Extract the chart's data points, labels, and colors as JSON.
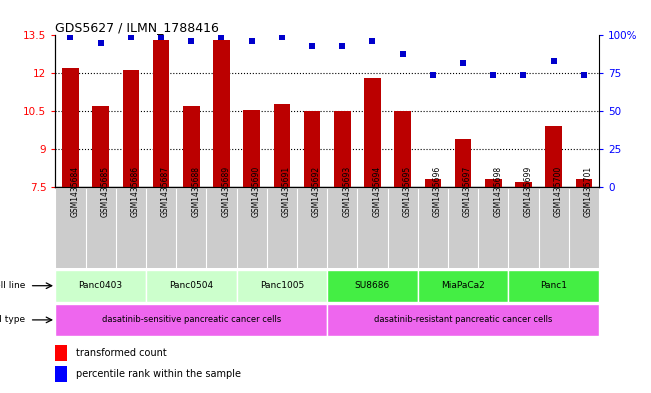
{
  "title": "GDS5627 / ILMN_1788416",
  "samples": [
    "GSM1435684",
    "GSM1435685",
    "GSM1435686",
    "GSM1435687",
    "GSM1435688",
    "GSM1435689",
    "GSM1435690",
    "GSM1435691",
    "GSM1435692",
    "GSM1435693",
    "GSM1435694",
    "GSM1435695",
    "GSM1435696",
    "GSM1435697",
    "GSM1435698",
    "GSM1435699",
    "GSM1435700",
    "GSM1435701"
  ],
  "transformed_count": [
    12.2,
    10.7,
    12.15,
    13.3,
    10.7,
    13.3,
    10.55,
    10.8,
    10.5,
    10.5,
    11.8,
    10.5,
    7.8,
    9.4,
    7.8,
    7.7,
    9.9,
    7.8
  ],
  "percentile_rank": [
    99,
    95,
    99,
    99,
    96,
    99,
    96,
    99,
    93,
    93,
    96,
    88,
    74,
    82,
    74,
    74,
    83,
    74
  ],
  "cell_line_groups": [
    {
      "label": "Panc0403",
      "start": 0,
      "end": 3,
      "color": "#ccffcc"
    },
    {
      "label": "Panc0504",
      "start": 3,
      "end": 6,
      "color": "#ccffcc"
    },
    {
      "label": "Panc1005",
      "start": 6,
      "end": 9,
      "color": "#ccffcc"
    },
    {
      "label": "SU8686",
      "start": 9,
      "end": 12,
      "color": "#44ee44"
    },
    {
      "label": "MiaPaCa2",
      "start": 12,
      "end": 15,
      "color": "#44ee44"
    },
    {
      "label": "Panc1",
      "start": 15,
      "end": 18,
      "color": "#44ee44"
    }
  ],
  "cell_type_groups": [
    {
      "label": "dasatinib-sensitive pancreatic cancer cells",
      "start": 0,
      "end": 9,
      "color": "#ee66ee"
    },
    {
      "label": "dasatinib-resistant pancreatic cancer cells",
      "start": 9,
      "end": 18,
      "color": "#ee66ee"
    }
  ],
  "ylim": [
    7.5,
    13.5
  ],
  "yticks": [
    7.5,
    9.0,
    10.5,
    12.0,
    13.5
  ],
  "right_yticks": [
    0,
    25,
    50,
    75,
    100
  ],
  "right_ytick_labels": [
    "0",
    "25",
    "50",
    "75",
    "100%"
  ],
  "bar_color": "#bb0000",
  "dot_color": "#0000cc",
  "bar_bottom": 7.5,
  "background_color": "#ffffff",
  "grid_color": "#000000"
}
